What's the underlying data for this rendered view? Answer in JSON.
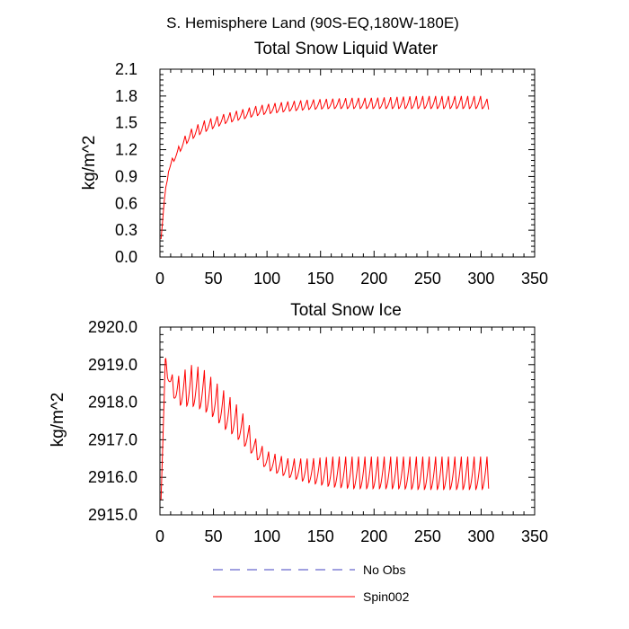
{
  "figure_title": "S. Hemisphere Land (90S-EQ,180W-180E)",
  "colors": {
    "spin": "#ff0000",
    "noobs": "#4040c0",
    "axis": "#000000"
  },
  "legend": [
    {
      "label": "No Obs",
      "color": "#4040c0",
      "style": "dashed"
    },
    {
      "label": "Spin002",
      "color": "#ff0000",
      "style": "solid"
    }
  ],
  "chart_data": [
    {
      "type": "line",
      "title": "Total Snow Liquid Water",
      "xlabel": "",
      "ylabel": "kg/m^2",
      "xlim": [
        0,
        350
      ],
      "ylim": [
        0.0,
        2.1
      ],
      "xticks": [
        "0",
        "50",
        "100",
        "150",
        "200",
        "250",
        "300",
        "350"
      ],
      "yticks": [
        "0.0",
        "0.3",
        "0.6",
        "0.9",
        "1.2",
        "1.5",
        "1.8",
        "2.1"
      ],
      "series": [
        {
          "name": "Spin002",
          "color": "#ff0000",
          "x": [
            1,
            4,
            8,
            12,
            16,
            20,
            25,
            30,
            40,
            50,
            60,
            70,
            80,
            90,
            100,
            120,
            140,
            160,
            180,
            200,
            220,
            240,
            260,
            280,
            300,
            307
          ],
          "y_low": [
            0.2,
            0.6,
            0.95,
            1.05,
            1.13,
            1.2,
            1.27,
            1.32,
            1.39,
            1.44,
            1.49,
            1.52,
            1.55,
            1.58,
            1.6,
            1.63,
            1.65,
            1.66,
            1.66,
            1.66,
            1.66,
            1.66,
            1.66,
            1.66,
            1.66,
            1.65
          ],
          "y_high": [
            0.2,
            0.65,
            1.0,
            1.12,
            1.2,
            1.3,
            1.38,
            1.44,
            1.52,
            1.56,
            1.6,
            1.63,
            1.66,
            1.69,
            1.71,
            1.74,
            1.76,
            1.77,
            1.78,
            1.78,
            1.79,
            1.8,
            1.8,
            1.8,
            1.8,
            1.76
          ],
          "cycle_period": 6
        }
      ]
    },
    {
      "type": "line",
      "title": "Total Snow Ice",
      "xlabel": "",
      "ylabel": "kg/m^2",
      "xlim": [
        0,
        350
      ],
      "ylim": [
        2915.0,
        2920.0
      ],
      "xticks": [
        "0",
        "50",
        "100",
        "150",
        "200",
        "250",
        "300",
        "350"
      ],
      "yticks": [
        "2915.0",
        "2916.0",
        "2917.0",
        "2918.0",
        "2919.0",
        "2920.0"
      ],
      "series": [
        {
          "name": "Spin002",
          "color": "#ff0000",
          "x": [
            1,
            5,
            10,
            15,
            20,
            30,
            40,
            50,
            60,
            70,
            80,
            90,
            100,
            120,
            140,
            160,
            180,
            200,
            220,
            240,
            260,
            280,
            300,
            307
          ],
          "y_low": [
            2915.4,
            2918.9,
            2918.3,
            2918.0,
            2917.9,
            2917.9,
            2917.8,
            2917.6,
            2917.3,
            2917.1,
            2916.8,
            2916.5,
            2916.2,
            2916.0,
            2915.85,
            2915.75,
            2915.7,
            2915.7,
            2915.7,
            2915.68,
            2915.68,
            2915.68,
            2915.68,
            2915.7
          ],
          "y_high": [
            2915.6,
            2919.2,
            2918.8,
            2918.6,
            2918.8,
            2919.0,
            2918.9,
            2918.6,
            2918.3,
            2918.0,
            2917.6,
            2917.0,
            2916.7,
            2916.5,
            2916.5,
            2916.55,
            2916.55,
            2916.55,
            2916.55,
            2916.55,
            2916.55,
            2916.55,
            2916.55,
            2916.55
          ],
          "cycle_period": 6
        }
      ]
    }
  ]
}
